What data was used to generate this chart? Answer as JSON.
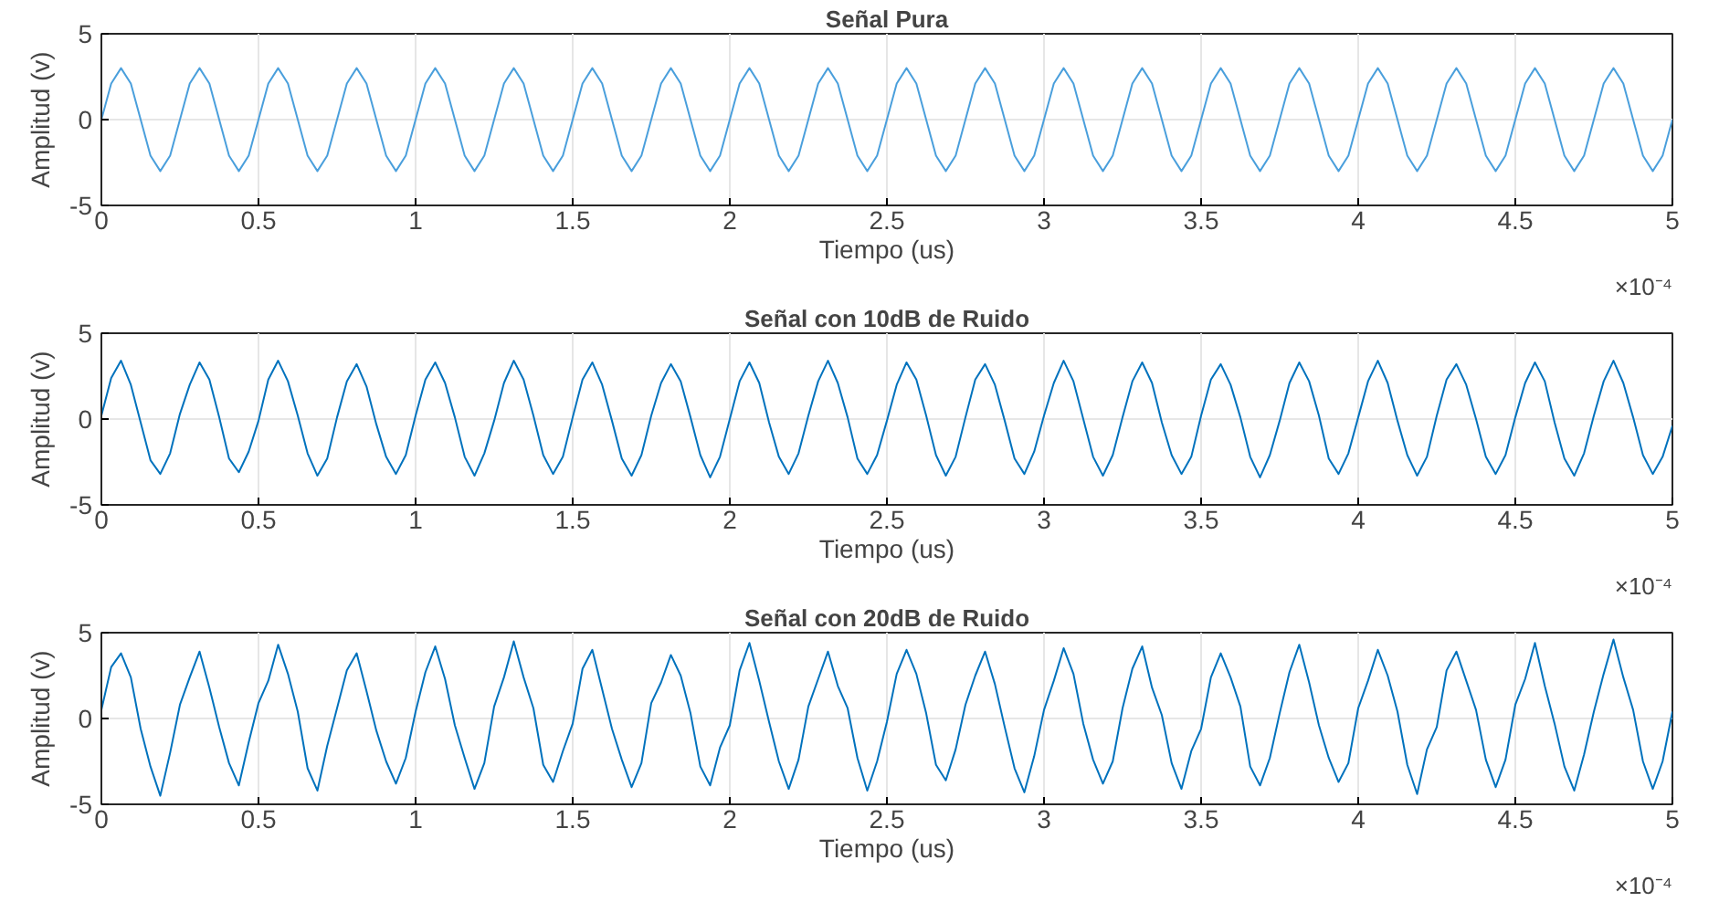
{
  "chart_data": [
    {
      "type": "line",
      "title": "Señal Pura",
      "xlabel": "Tiempo (us)",
      "ylabel": "Amplitud (v)",
      "annotations": [
        "×10⁻⁴"
      ],
      "x": [
        0,
        0.03125,
        0.0625,
        0.09375,
        0.125,
        0.15625,
        0.1875,
        0.21875,
        0.25,
        0.28125,
        0.3125,
        0.34375,
        0.375,
        0.40625,
        0.4375,
        0.46875,
        0.5,
        0.53125,
        0.5625,
        0.59375,
        0.625,
        0.65625,
        0.6875,
        0.71875,
        0.75,
        0.78125,
        0.8125,
        0.84375,
        0.875,
        0.90625,
        0.9375,
        0.96875,
        1,
        1.03125,
        1.0625,
        1.09375,
        1.125,
        1.15625,
        1.1875,
        1.21875,
        1.25,
        1.28125,
        1.3125,
        1.34375,
        1.375,
        1.40625,
        1.4375,
        1.46875,
        1.5,
        1.53125,
        1.5625,
        1.59375,
        1.625,
        1.65625,
        1.6875,
        1.71875,
        1.75,
        1.78125,
        1.8125,
        1.84375,
        1.875,
        1.90625,
        1.9375,
        1.96875,
        2,
        2.03125,
        2.0625,
        2.09375,
        2.125,
        2.15625,
        2.1875,
        2.21875,
        2.25,
        2.28125,
        2.3125,
        2.34375,
        2.375,
        2.40625,
        2.4375,
        2.46875,
        2.5,
        2.53125,
        2.5625,
        2.59375,
        2.625,
        2.65625,
        2.6875,
        2.71875,
        2.75,
        2.78125,
        2.8125,
        2.84375,
        2.875,
        2.90625,
        2.9375,
        2.96875,
        3,
        3.03125,
        3.0625,
        3.09375,
        3.125,
        3.15625,
        3.1875,
        3.21875,
        3.25,
        3.28125,
        3.3125,
        3.34375,
        3.375,
        3.40625,
        3.4375,
        3.46875,
        3.5,
        3.53125,
        3.5625,
        3.59375,
        3.625,
        3.65625,
        3.6875,
        3.71875,
        3.75,
        3.78125,
        3.8125,
        3.84375,
        3.875,
        3.90625,
        3.9375,
        3.96875,
        4,
        4.03125,
        4.0625,
        4.09375,
        4.125,
        4.15625,
        4.1875,
        4.21875,
        4.25,
        4.28125,
        4.3125,
        4.34375,
        4.375,
        4.40625,
        4.4375,
        4.46875,
        4.5,
        4.53125,
        4.5625,
        4.59375,
        4.625,
        4.65625,
        4.6875,
        4.71875,
        4.75,
        4.78125,
        4.8125,
        4.84375,
        4.875,
        4.90625,
        4.9375,
        4.96875,
        5
      ],
      "series": [
        {
          "color": "#4a9fdc",
          "values": [
            0,
            2.1,
            3,
            2.1,
            0,
            -2.1,
            -3,
            -2.1,
            0,
            2.1,
            3,
            2.1,
            0,
            -2.1,
            -3,
            -2.1,
            0,
            2.1,
            3,
            2.1,
            0,
            -2.1,
            -3,
            -2.1,
            0,
            2.1,
            3,
            2.1,
            0,
            -2.1,
            -3,
            -2.1,
            0,
            2.1,
            3,
            2.1,
            0,
            -2.1,
            -3,
            -2.1,
            0,
            2.1,
            3,
            2.1,
            0,
            -2.1,
            -3,
            -2.1,
            0,
            2.1,
            3,
            2.1,
            0,
            -2.1,
            -3,
            -2.1,
            0,
            2.1,
            3,
            2.1,
            0,
            -2.1,
            -3,
            -2.1,
            0,
            2.1,
            3,
            2.1,
            0,
            -2.1,
            -3,
            -2.1,
            0,
            2.1,
            3,
            2.1,
            0,
            -2.1,
            -3,
            -2.1,
            0,
            2.1,
            3,
            2.1,
            0,
            -2.1,
            -3,
            -2.1,
            0,
            2.1,
            3,
            2.1,
            0,
            -2.1,
            -3,
            -2.1,
            0,
            2.1,
            3,
            2.1,
            0,
            -2.1,
            -3,
            -2.1,
            0,
            2.1,
            3,
            2.1,
            0,
            -2.1,
            -3,
            -2.1,
            0,
            2.1,
            3,
            2.1,
            0,
            -2.1,
            -3,
            -2.1,
            0,
            2.1,
            3,
            2.1,
            0,
            -2.1,
            -3,
            -2.1,
            0,
            2.1,
            3,
            2.1,
            0,
            -2.1,
            -3,
            -2.1,
            0,
            2.1,
            3,
            2.1,
            0,
            -2.1,
            -3,
            -2.1,
            0,
            2.1,
            3,
            2.1,
            0,
            -2.1,
            -3,
            -2.1,
            0,
            2.1,
            3,
            2.1,
            0,
            -2.1,
            -3,
            -2.1,
            0
          ]
        }
      ],
      "xlim": [
        0,
        5
      ],
      "xticks": [
        0,
        0.5,
        1,
        1.5,
        2,
        2.5,
        3,
        3.5,
        4,
        4.5,
        5
      ],
      "ylim": [
        -5,
        5
      ],
      "yticks": [
        -5,
        0,
        5
      ],
      "grid": true
    },
    {
      "type": "line",
      "title": "Señal con 10dB de Ruido",
      "xlabel": "Tiempo (us)",
      "ylabel": "Amplitud (v)",
      "annotations": [
        "×10⁻⁴"
      ],
      "x": [
        0,
        0.03125,
        0.0625,
        0.09375,
        0.125,
        0.15625,
        0.1875,
        0.21875,
        0.25,
        0.28125,
        0.3125,
        0.34375,
        0.375,
        0.40625,
        0.4375,
        0.46875,
        0.5,
        0.53125,
        0.5625,
        0.59375,
        0.625,
        0.65625,
        0.6875,
        0.71875,
        0.75,
        0.78125,
        0.8125,
        0.84375,
        0.875,
        0.90625,
        0.9375,
        0.96875,
        1,
        1.03125,
        1.0625,
        1.09375,
        1.125,
        1.15625,
        1.1875,
        1.21875,
        1.25,
        1.28125,
        1.3125,
        1.34375,
        1.375,
        1.40625,
        1.4375,
        1.46875,
        1.5,
        1.53125,
        1.5625,
        1.59375,
        1.625,
        1.65625,
        1.6875,
        1.71875,
        1.75,
        1.78125,
        1.8125,
        1.84375,
        1.875,
        1.90625,
        1.9375,
        1.96875,
        2,
        2.03125,
        2.0625,
        2.09375,
        2.125,
        2.15625,
        2.1875,
        2.21875,
        2.25,
        2.28125,
        2.3125,
        2.34375,
        2.375,
        2.40625,
        2.4375,
        2.46875,
        2.5,
        2.53125,
        2.5625,
        2.59375,
        2.625,
        2.65625,
        2.6875,
        2.71875,
        2.75,
        2.78125,
        2.8125,
        2.84375,
        2.875,
        2.90625,
        2.9375,
        2.96875,
        3,
        3.03125,
        3.0625,
        3.09375,
        3.125,
        3.15625,
        3.1875,
        3.21875,
        3.25,
        3.28125,
        3.3125,
        3.34375,
        3.375,
        3.40625,
        3.4375,
        3.46875,
        3.5,
        3.53125,
        3.5625,
        3.59375,
        3.625,
        3.65625,
        3.6875,
        3.71875,
        3.75,
        3.78125,
        3.8125,
        3.84375,
        3.875,
        3.90625,
        3.9375,
        3.96875,
        4,
        4.03125,
        4.0625,
        4.09375,
        4.125,
        4.15625,
        4.1875,
        4.21875,
        4.25,
        4.28125,
        4.3125,
        4.34375,
        4.375,
        4.40625,
        4.4375,
        4.46875,
        4.5,
        4.53125,
        4.5625,
        4.59375,
        4.625,
        4.65625,
        4.6875,
        4.71875,
        4.75,
        4.78125,
        4.8125,
        4.84375,
        4.875,
        4.90625,
        4.9375,
        4.96875,
        5
      ],
      "series": [
        {
          "color": "#0072bd",
          "values": [
            0.2,
            2.4,
            3.4,
            2.0,
            -0.2,
            -2.4,
            -3.2,
            -2.0,
            0.3,
            2.0,
            3.3,
            2.3,
            0.1,
            -2.3,
            -3.1,
            -1.9,
            -0.1,
            2.3,
            3.4,
            2.2,
            0.2,
            -2.0,
            -3.3,
            -2.3,
            0.1,
            2.2,
            3.2,
            1.9,
            -0.3,
            -2.2,
            -3.2,
            -2.1,
            0.2,
            2.3,
            3.3,
            2.1,
            0.1,
            -2.2,
            -3.3,
            -2.0,
            -0.1,
            2.1,
            3.4,
            2.3,
            0.2,
            -2.1,
            -3.2,
            -2.2,
            0.1,
            2.3,
            3.3,
            2.0,
            -0.1,
            -2.3,
            -3.3,
            -2.1,
            0.2,
            2.1,
            3.2,
            2.2,
            0.1,
            -2.1,
            -3.4,
            -2.2,
            0.0,
            2.2,
            3.3,
            2.1,
            -0.2,
            -2.2,
            -3.2,
            -2.0,
            0.2,
            2.2,
            3.4,
            2.1,
            0.1,
            -2.3,
            -3.2,
            -2.1,
            -0.1,
            2.0,
            3.3,
            2.3,
            0.2,
            -2.1,
            -3.3,
            -2.2,
            0.1,
            2.3,
            3.2,
            2.0,
            -0.1,
            -2.3,
            -3.2,
            -1.9,
            0.2,
            2.1,
            3.4,
            2.2,
            0.0,
            -2.2,
            -3.3,
            -2.1,
            0.1,
            2.2,
            3.3,
            2.1,
            -0.2,
            -2.1,
            -3.2,
            -2.2,
            0.2,
            2.3,
            3.2,
            2.0,
            0.1,
            -2.2,
            -3.4,
            -2.1,
            -0.1,
            2.1,
            3.3,
            2.2,
            0.2,
            -2.3,
            -3.2,
            -2.0,
            0.1,
            2.2,
            3.4,
            2.1,
            -0.1,
            -2.1,
            -3.3,
            -2.2,
            0.2,
            2.3,
            3.2,
            2.0,
            0.0,
            -2.2,
            -3.2,
            -2.1,
            0.1,
            2.1,
            3.3,
            2.2,
            -0.2,
            -2.3,
            -3.3,
            -2.0,
            0.2,
            2.2,
            3.4,
            2.1,
            0.1,
            -2.1,
            -3.2,
            -2.2,
            -0.4
          ]
        }
      ],
      "xlim": [
        0,
        5
      ],
      "xticks": [
        0,
        0.5,
        1,
        1.5,
        2,
        2.5,
        3,
        3.5,
        4,
        4.5,
        5
      ],
      "ylim": [
        -5,
        5
      ],
      "yticks": [
        -5,
        0,
        5
      ],
      "grid": true
    },
    {
      "type": "line",
      "title": "Señal con 20dB de Ruido",
      "xlabel": "Tiempo (us)",
      "ylabel": "Amplitud (v)",
      "annotations": [
        "×10⁻⁴"
      ],
      "x": [
        0,
        0.03125,
        0.0625,
        0.09375,
        0.125,
        0.15625,
        0.1875,
        0.21875,
        0.25,
        0.28125,
        0.3125,
        0.34375,
        0.375,
        0.40625,
        0.4375,
        0.46875,
        0.5,
        0.53125,
        0.5625,
        0.59375,
        0.625,
        0.65625,
        0.6875,
        0.71875,
        0.75,
        0.78125,
        0.8125,
        0.84375,
        0.875,
        0.90625,
        0.9375,
        0.96875,
        1,
        1.03125,
        1.0625,
        1.09375,
        1.125,
        1.15625,
        1.1875,
        1.21875,
        1.25,
        1.28125,
        1.3125,
        1.34375,
        1.375,
        1.40625,
        1.4375,
        1.46875,
        1.5,
        1.53125,
        1.5625,
        1.59375,
        1.625,
        1.65625,
        1.6875,
        1.71875,
        1.75,
        1.78125,
        1.8125,
        1.84375,
        1.875,
        1.90625,
        1.9375,
        1.96875,
        2,
        2.03125,
        2.0625,
        2.09375,
        2.125,
        2.15625,
        2.1875,
        2.21875,
        2.25,
        2.28125,
        2.3125,
        2.34375,
        2.375,
        2.40625,
        2.4375,
        2.46875,
        2.5,
        2.53125,
        2.5625,
        2.59375,
        2.625,
        2.65625,
        2.6875,
        2.71875,
        2.75,
        2.78125,
        2.8125,
        2.84375,
        2.875,
        2.90625,
        2.9375,
        2.96875,
        3,
        3.03125,
        3.0625,
        3.09375,
        3.125,
        3.15625,
        3.1875,
        3.21875,
        3.25,
        3.28125,
        3.3125,
        3.34375,
        3.375,
        3.40625,
        3.4375,
        3.46875,
        3.5,
        3.53125,
        3.5625,
        3.59375,
        3.625,
        3.65625,
        3.6875,
        3.71875,
        3.75,
        3.78125,
        3.8125,
        3.84375,
        3.875,
        3.90625,
        3.9375,
        3.96875,
        4,
        4.03125,
        4.0625,
        4.09375,
        4.125,
        4.15625,
        4.1875,
        4.21875,
        4.25,
        4.28125,
        4.3125,
        4.34375,
        4.375,
        4.40625,
        4.4375,
        4.46875,
        4.5,
        4.53125,
        4.5625,
        4.59375,
        4.625,
        4.65625,
        4.6875,
        4.71875,
        4.75,
        4.78125,
        4.8125,
        4.84375,
        4.875,
        4.90625,
        4.9375,
        4.96875,
        5
      ],
      "series": [
        {
          "color": "#0072bd",
          "values": [
            0.5,
            3.0,
            3.8,
            2.4,
            -0.6,
            -2.8,
            -4.5,
            -2.0,
            0.8,
            2.4,
            3.9,
            1.8,
            -0.5,
            -2.6,
            -3.9,
            -1.4,
            0.9,
            2.2,
            4.3,
            2.6,
            0.4,
            -2.9,
            -4.2,
            -1.6,
            0.6,
            2.8,
            3.8,
            1.6,
            -0.7,
            -2.5,
            -3.8,
            -2.3,
            0.4,
            2.7,
            4.2,
            2.3,
            -0.4,
            -2.3,
            -4.1,
            -2.6,
            0.7,
            2.4,
            4.5,
            2.4,
            0.6,
            -2.7,
            -3.7,
            -1.9,
            -0.3,
            2.9,
            4.0,
            1.7,
            -0.6,
            -2.4,
            -4.0,
            -2.6,
            0.9,
            2.1,
            3.7,
            2.5,
            0.3,
            -2.8,
            -3.9,
            -1.7,
            -0.4,
            2.8,
            4.4,
            2.2,
            -0.2,
            -2.5,
            -4.1,
            -2.4,
            0.7,
            2.3,
            3.9,
            1.9,
            0.6,
            -2.3,
            -4.2,
            -2.5,
            -0.2,
            2.6,
            4.0,
            2.6,
            0.3,
            -2.7,
            -3.6,
            -1.8,
            0.8,
            2.5,
            3.9,
            2.0,
            -0.5,
            -2.9,
            -4.3,
            -2.2,
            0.5,
            2.2,
            4.1,
            2.6,
            -0.3,
            -2.4,
            -3.8,
            -2.5,
            0.6,
            2.9,
            4.2,
            1.8,
            0.2,
            -2.6,
            -4.1,
            -1.9,
            -0.6,
            2.4,
            3.8,
            2.4,
            0.7,
            -2.8,
            -3.9,
            -2.3,
            0.3,
            2.7,
            4.3,
            2.1,
            -0.4,
            -2.3,
            -3.7,
            -2.6,
            0.6,
            2.2,
            4.0,
            2.5,
            0.4,
            -2.7,
            -4.4,
            -1.8,
            -0.5,
            2.8,
            3.9,
            2.2,
            0.5,
            -2.4,
            -4.0,
            -2.4,
            0.8,
            2.3,
            4.4,
            1.9,
            -0.3,
            -2.8,
            -4.2,
            -2.1,
            0.4,
            2.6,
            4.6,
            2.4,
            0.5,
            -2.5,
            -4.1,
            -2.5,
            0.4
          ]
        }
      ],
      "xlim": [
        0,
        5
      ],
      "xticks": [
        0,
        0.5,
        1,
        1.5,
        2,
        2.5,
        3,
        3.5,
        4,
        4.5,
        5
      ],
      "ylim": [
        -5,
        5
      ],
      "yticks": [
        -5,
        0,
        5
      ],
      "grid": true
    }
  ]
}
